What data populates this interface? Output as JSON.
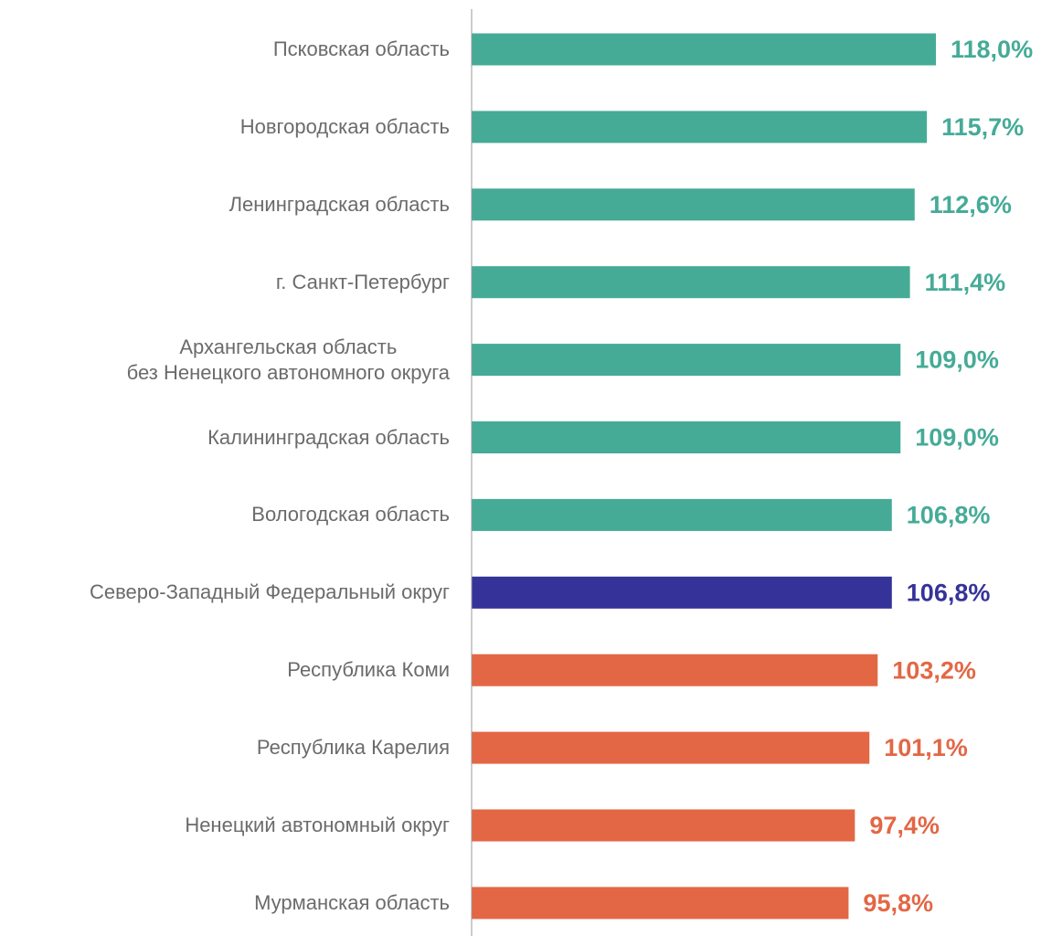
{
  "chart_data": {
    "type": "bar",
    "orientation": "horizontal",
    "categories": [
      "Псковская область",
      "Новгородская область",
      "Ленинградская область",
      "г. Санкт-Петербург",
      "Архангельская область\nбез Ненецкого автономного округа",
      "Калининградская область",
      "Вологодская область",
      "Северо-Западный Федеральный округ",
      "Республика Коми",
      "Республика Карелия",
      "Ненецкий автономный округ",
      "Мурманская область"
    ],
    "values": [
      118.0,
      115.7,
      112.6,
      111.4,
      109.0,
      109.0,
      106.8,
      106.8,
      103.2,
      101.1,
      97.4,
      95.8
    ],
    "value_labels": [
      "118,0%",
      "115,7%",
      "112,6%",
      "111,4%",
      "109,0%",
      "109,0%",
      "106,8%",
      "106,8%",
      "103,2%",
      "101,1%",
      "97,4%",
      "95,8%"
    ],
    "colors": [
      "#45ab97",
      "#45ab97",
      "#45ab97",
      "#45ab97",
      "#45ab97",
      "#45ab97",
      "#45ab97",
      "#353399",
      "#e36745",
      "#e36745",
      "#e36745",
      "#e36745"
    ],
    "xlim": [
      0,
      118
    ]
  }
}
